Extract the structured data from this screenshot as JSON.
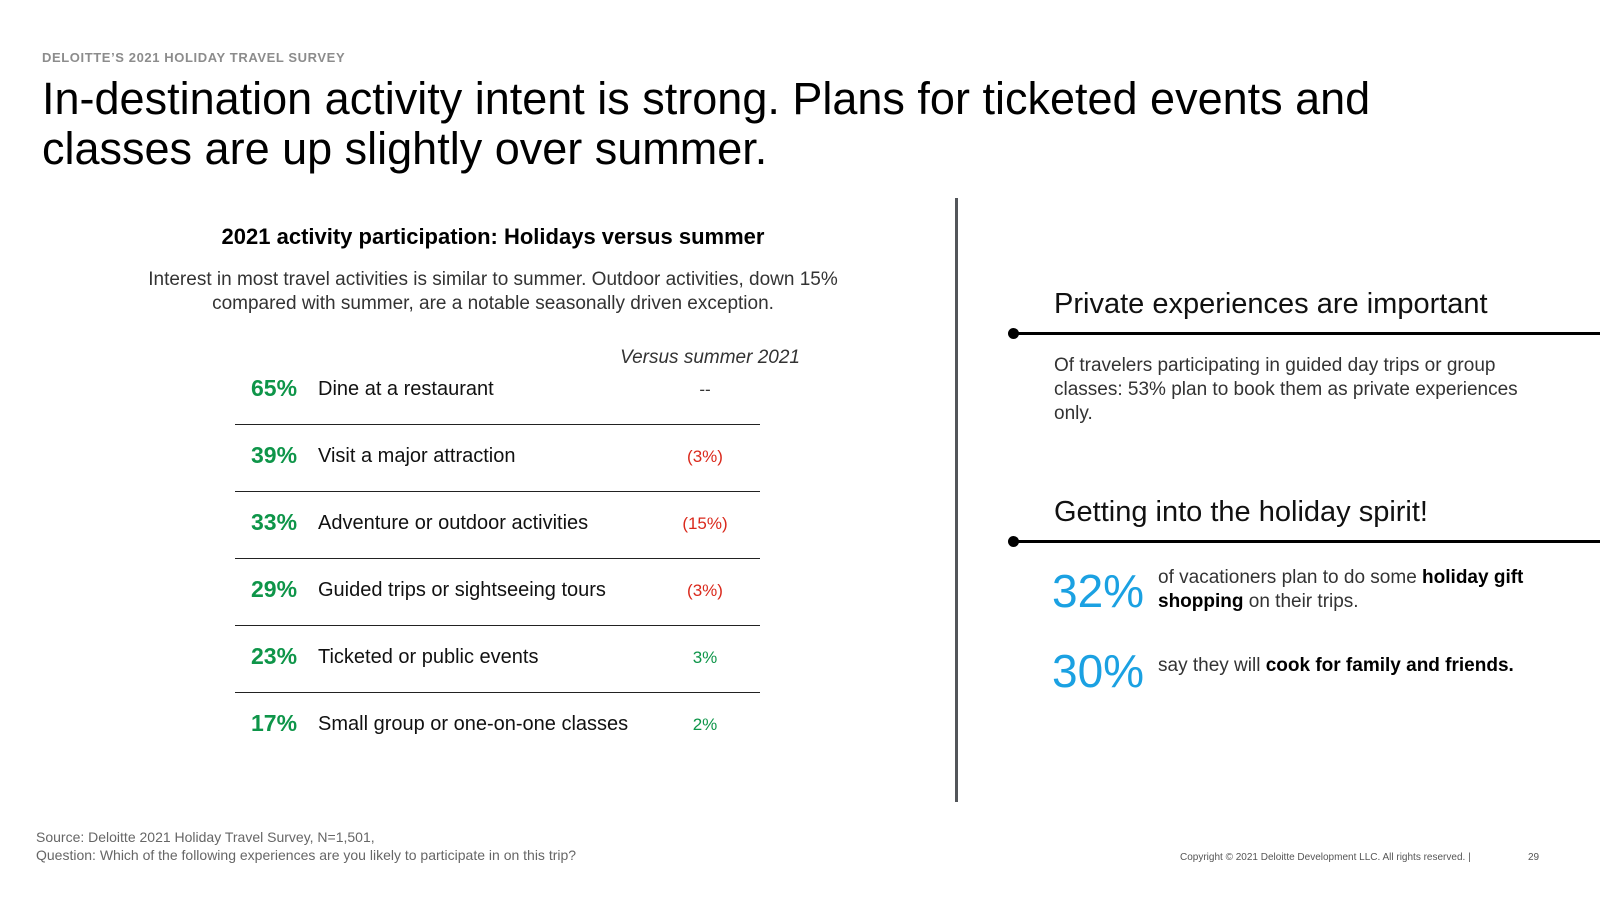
{
  "header": {
    "eyebrow": "DELOITTE’S 2021 HOLIDAY TRAVEL SURVEY",
    "headline": "In-destination activity intent is strong. Plans for ticketed events and classes are up slightly over summer."
  },
  "chart_data": {
    "type": "table",
    "title": "2021 activity participation: Holidays versus summer",
    "subtitle": "Interest in most travel activities is similar to summer. Outdoor activities, down 15% compared with summer, are a notable seasonally driven exception.",
    "column_header": "Versus summer 2021",
    "rows": [
      {
        "pct": "65%",
        "label": "Dine at a restaurant",
        "delta": "--",
        "delta_color": "#333333"
      },
      {
        "pct": "39%",
        "label": "Visit a major attraction",
        "delta": "(3%)",
        "delta_color": "#da291c"
      },
      {
        "pct": "33%",
        "label": "Adventure or outdoor activities",
        "delta": "(15%)",
        "delta_color": "#da291c"
      },
      {
        "pct": "29%",
        "label": "Guided trips or sightseeing tours",
        "delta": "(3%)",
        "delta_color": "#da291c"
      },
      {
        "pct": "23%",
        "label": "Ticketed or public events",
        "delta": "3%",
        "delta_color": "#0e9549"
      },
      {
        "pct": "17%",
        "label": "Small group or one-on-one classes",
        "delta": "2%",
        "delta_color": "#0e9549"
      }
    ]
  },
  "right": {
    "private": {
      "title": "Private experiences are important",
      "body": "Of travelers participating in guided day trips or group classes: 53% plan to book them as private experiences only."
    },
    "holiday": {
      "title": "Getting into the holiday spirit!",
      "stat1": {
        "value": "32%",
        "text_pre": "of vacationers plan to do some ",
        "text_bold": "holiday gift shopping",
        "text_post": " on their trips."
      },
      "stat2": {
        "value": "30%",
        "text_pre": "say they will ",
        "text_bold": "cook for family and friends.",
        "text_post": ""
      }
    }
  },
  "footer": {
    "source_line1": "Source: Deloitte 2021 Holiday Travel Survey, N=1,501,",
    "source_line2": "Question: Which of the following experiences are you likely to participate in on this trip?",
    "copyright": "Copyright © 2021 Deloitte Development LLC. All rights reserved.  |",
    "page_number": "29"
  },
  "colors": {
    "accent_green": "#0e9549",
    "accent_red": "#da291c",
    "accent_blue": "#1ba1e2"
  }
}
